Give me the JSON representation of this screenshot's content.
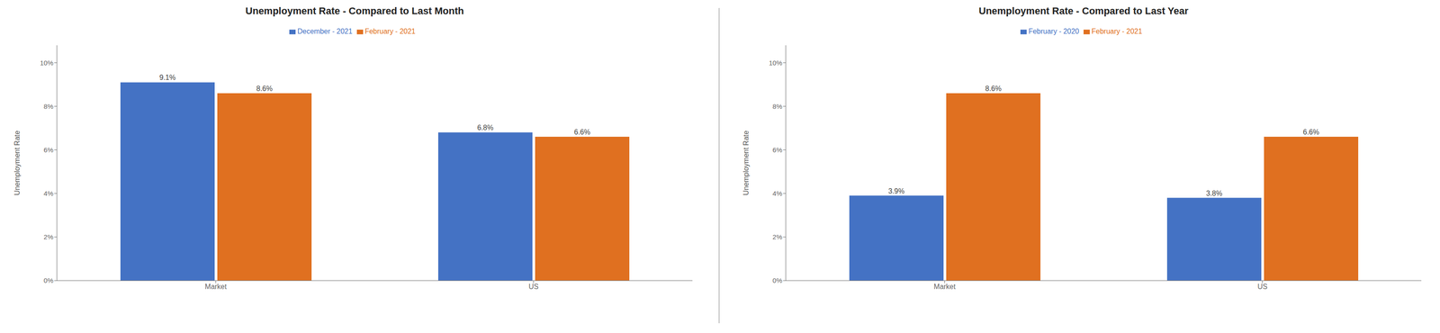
{
  "chart_data": [
    {
      "type": "bar",
      "title": "Unemployment Rate - Compared to Last Month",
      "ylabel": "Unemployment Rate",
      "categories": [
        "Market",
        "US"
      ],
      "series": [
        {
          "name": "December - 2021",
          "color": "#4472C4",
          "values": [
            9.1,
            6.8
          ],
          "value_labels": [
            "9.1%",
            "6.8%"
          ]
        },
        {
          "name": "February - 2021",
          "color": "#E07020",
          "values": [
            8.6,
            6.6
          ],
          "value_labels": [
            "8.6%",
            "6.6%"
          ]
        }
      ],
      "ylim": [
        0,
        10.8
      ],
      "yticks": [
        {
          "value": 0,
          "label": "0%"
        },
        {
          "value": 2,
          "label": "2%"
        },
        {
          "value": 4,
          "label": "4%"
        },
        {
          "value": 6,
          "label": "6%"
        },
        {
          "value": 8,
          "label": "8%"
        },
        {
          "value": 10,
          "label": "10%"
        }
      ],
      "data_labels": true,
      "grid": false,
      "legend": "top"
    },
    {
      "type": "bar",
      "title": "Unemployment Rate - Compared to Last Year",
      "ylabel": "Unemployment Rate",
      "categories": [
        "Market",
        "US"
      ],
      "series": [
        {
          "name": "February - 2020",
          "color": "#4472C4",
          "values": [
            3.9,
            3.8
          ],
          "value_labels": [
            "3.9%",
            "3.8%"
          ]
        },
        {
          "name": "February - 2021",
          "color": "#E07020",
          "values": [
            8.6,
            6.6
          ],
          "value_labels": [
            "8.6%",
            "6.6%"
          ]
        }
      ],
      "ylim": [
        0,
        10.8
      ],
      "yticks": [
        {
          "value": 0,
          "label": "0%"
        },
        {
          "value": 2,
          "label": "2%"
        },
        {
          "value": 4,
          "label": "4%"
        },
        {
          "value": 6,
          "label": "6%"
        },
        {
          "value": 8,
          "label": "8%"
        },
        {
          "value": 10,
          "label": "10%"
        }
      ],
      "data_labels": true,
      "grid": false,
      "legend": "top"
    }
  ]
}
